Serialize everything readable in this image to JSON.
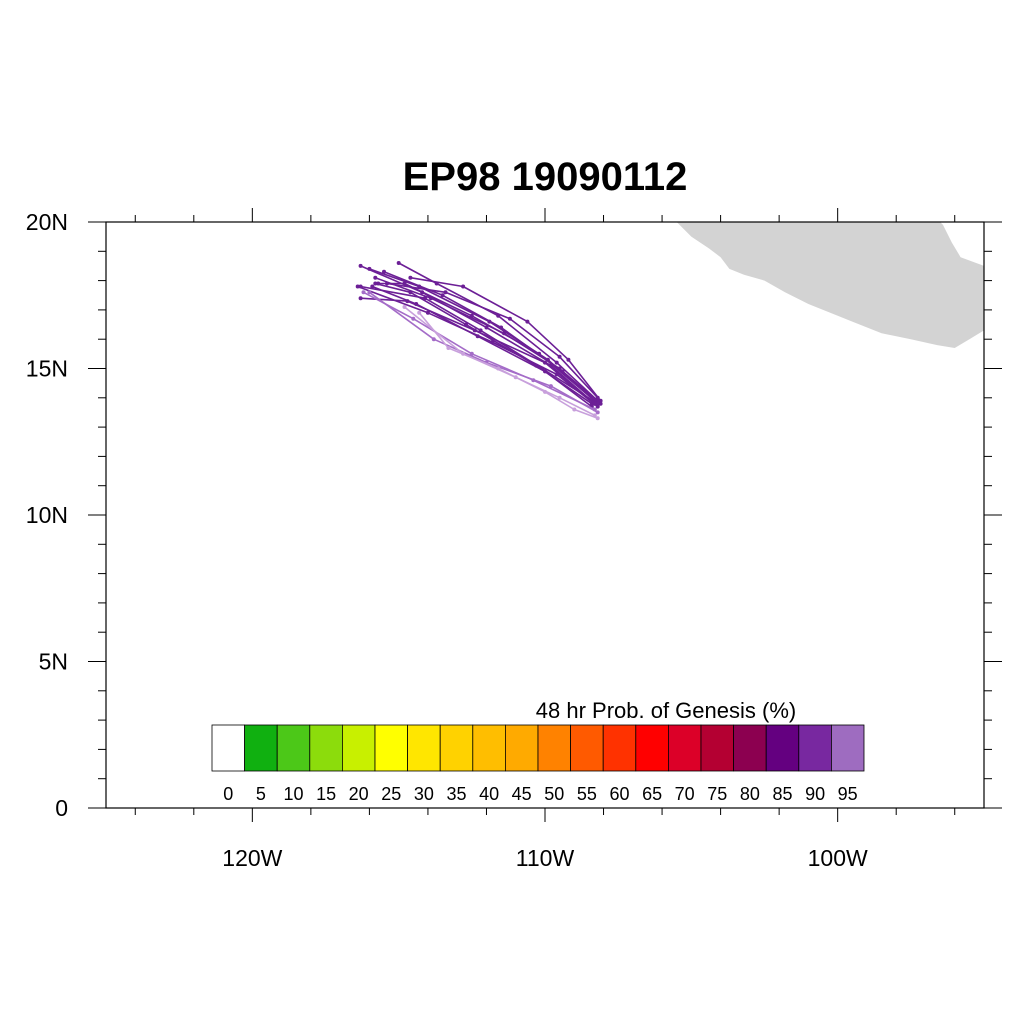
{
  "title": "EP98 19090112",
  "map": {
    "lon_range": [
      -125,
      -95
    ],
    "lat_range": [
      0,
      20
    ],
    "land_color": "#d3d3d3",
    "lon_labels": [
      {
        "lon": -120,
        "text": "120W"
      },
      {
        "lon": -110,
        "text": "110W"
      },
      {
        "lon": -100,
        "text": "100W"
      }
    ],
    "lat_labels": [
      {
        "lat": 20,
        "text": "20N"
      },
      {
        "lat": 15,
        "text": "15N"
      },
      {
        "lat": 10,
        "text": "10N"
      },
      {
        "lat": 5,
        "text": "5N"
      },
      {
        "lat": 0,
        "text": "0"
      }
    ],
    "land_polygon": [
      [
        -105.5,
        20.0
      ],
      [
        -105.0,
        19.5
      ],
      [
        -104.4,
        19.1
      ],
      [
        -104.0,
        18.8
      ],
      [
        -103.7,
        18.4
      ],
      [
        -103.2,
        18.2
      ],
      [
        -102.5,
        18.0
      ],
      [
        -101.8,
        17.6
      ],
      [
        -101.0,
        17.2
      ],
      [
        -100.0,
        16.8
      ],
      [
        -99.5,
        16.6
      ],
      [
        -98.5,
        16.2
      ],
      [
        -97.5,
        16.0
      ],
      [
        -96.6,
        15.8
      ],
      [
        -96.0,
        15.7
      ],
      [
        -95.5,
        16.0
      ],
      [
        -95.0,
        16.3
      ],
      [
        -95.0,
        18.5
      ],
      [
        -95.8,
        18.8
      ],
      [
        -96.1,
        19.3
      ],
      [
        -96.4,
        19.9
      ],
      [
        -96.5,
        20.0
      ]
    ]
  },
  "colorbar": {
    "title": "48 hr Prob. of Genesis (%)",
    "labels": [
      "0",
      "5",
      "10",
      "15",
      "20",
      "25",
      "30",
      "35",
      "40",
      "45",
      "50",
      "55",
      "60",
      "65",
      "70",
      "75",
      "80",
      "85",
      "90",
      "95"
    ],
    "colors": [
      "#ffffff",
      "#10b010",
      "#4cc818",
      "#8cdc0c",
      "#c8f000",
      "#ffff00",
      "#ffe600",
      "#ffd200",
      "#ffbe00",
      "#ffaa00",
      "#ff8200",
      "#ff5a00",
      "#ff3200",
      "#ff0000",
      "#dc0028",
      "#b40032",
      "#8c0050",
      "#640080",
      "#7828a0",
      "#9e6cc0"
    ]
  },
  "tracks": [
    {
      "color": "#6c1f96",
      "points": [
        [
          -108.1,
          13.8
        ],
        [
          -109.4,
          14.9
        ],
        [
          -111.5,
          16.4
        ],
        [
          -113.5,
          17.5
        ],
        [
          -115.5,
          18.3
        ]
      ]
    },
    {
      "color": "#6c1f96",
      "points": [
        [
          -108.2,
          13.9
        ],
        [
          -109.6,
          15.2
        ],
        [
          -111.6,
          16.8
        ],
        [
          -113.7,
          17.9
        ],
        [
          -115.0,
          18.6
        ]
      ]
    },
    {
      "color": "#6c1f96",
      "points": [
        [
          -108.3,
          13.9
        ],
        [
          -109.5,
          15.0
        ],
        [
          -111.4,
          16.2
        ],
        [
          -113.9,
          17.4
        ],
        [
          -115.8,
          18.1
        ]
      ]
    },
    {
      "color": "#6c1f96",
      "points": [
        [
          -108.2,
          13.7
        ],
        [
          -109.6,
          14.8
        ],
        [
          -111.8,
          15.9
        ],
        [
          -114.0,
          16.9
        ],
        [
          -116.4,
          17.8
        ]
      ]
    },
    {
      "color": "#6c1f96",
      "points": [
        [
          -108.3,
          13.8
        ],
        [
          -109.8,
          15.1
        ],
        [
          -112.0,
          16.4
        ],
        [
          -114.2,
          17.6
        ],
        [
          -116.3,
          18.5
        ]
      ]
    },
    {
      "color": "#6c1f96",
      "points": [
        [
          -108.1,
          13.9
        ],
        [
          -109.2,
          15.3
        ],
        [
          -110.6,
          16.6
        ],
        [
          -112.8,
          17.8
        ],
        [
          -114.6,
          18.1
        ]
      ]
    },
    {
      "color": "#6c1f96",
      "points": [
        [
          -108.4,
          13.7
        ],
        [
          -110.0,
          14.9
        ],
        [
          -112.3,
          16.1
        ],
        [
          -114.4,
          17.2
        ],
        [
          -115.9,
          17.8
        ]
      ]
    },
    {
      "color": "#6c1f96",
      "points": [
        [
          -108.2,
          13.8
        ],
        [
          -109.9,
          15.3
        ],
        [
          -111.9,
          16.6
        ],
        [
          -114.3,
          17.8
        ],
        [
          -116.0,
          18.4
        ]
      ]
    },
    {
      "color": "#6c1f96",
      "points": [
        [
          -108.3,
          13.9
        ],
        [
          -110.2,
          15.5
        ],
        [
          -112.5,
          16.8
        ],
        [
          -114.8,
          17.9
        ],
        [
          -115.7,
          17.9
        ]
      ]
    },
    {
      "color": "#6c1f96",
      "points": [
        [
          -108.2,
          13.8
        ],
        [
          -110.1,
          15.0
        ],
        [
          -112.2,
          16.3
        ],
        [
          -114.1,
          17.4
        ],
        [
          -116.3,
          17.8
        ]
      ]
    },
    {
      "color": "#6c1f96",
      "points": [
        [
          -108.4,
          13.8
        ],
        [
          -110.3,
          15.1
        ],
        [
          -112.7,
          16.5
        ],
        [
          -114.6,
          17.6
        ],
        [
          -115.8,
          17.9
        ]
      ]
    },
    {
      "color": "#6c1f96",
      "points": [
        [
          -108.2,
          14.0
        ],
        [
          -109.5,
          15.4
        ],
        [
          -111.2,
          16.7
        ],
        [
          -113.4,
          17.6
        ],
        [
          -115.4,
          17.9
        ]
      ]
    },
    {
      "color": "#6c1f96",
      "points": [
        [
          -108.3,
          13.8
        ],
        [
          -110.0,
          15.2
        ],
        [
          -112.4,
          16.3
        ],
        [
          -114.7,
          17.3
        ],
        [
          -116.3,
          17.4
        ]
      ]
    },
    {
      "color": "#a46cc8",
      "points": [
        [
          -108.3,
          13.6
        ],
        [
          -110.4,
          14.6
        ],
        [
          -112.5,
          15.5
        ],
        [
          -114.5,
          16.7
        ],
        [
          -116.2,
          17.6
        ]
      ]
    },
    {
      "color": "#a46cc8",
      "points": [
        [
          -108.2,
          13.5
        ],
        [
          -109.8,
          14.4
        ],
        [
          -112.0,
          15.2
        ],
        [
          -113.8,
          16.0
        ],
        [
          -116.0,
          17.6
        ]
      ]
    },
    {
      "color": "#c8a0dc",
      "points": [
        [
          -108.2,
          13.3
        ],
        [
          -109.0,
          13.6
        ],
        [
          -110.0,
          14.2
        ],
        [
          -111.6,
          15.0
        ],
        [
          -113.3,
          15.7
        ],
        [
          -114.3,
          16.9
        ]
      ]
    },
    {
      "color": "#c8a0dc",
      "points": [
        [
          -108.3,
          13.4
        ],
        [
          -109.5,
          14.0
        ],
        [
          -111.0,
          14.7
        ],
        [
          -112.8,
          15.5
        ],
        [
          -114.8,
          17.1
        ]
      ]
    }
  ]
}
